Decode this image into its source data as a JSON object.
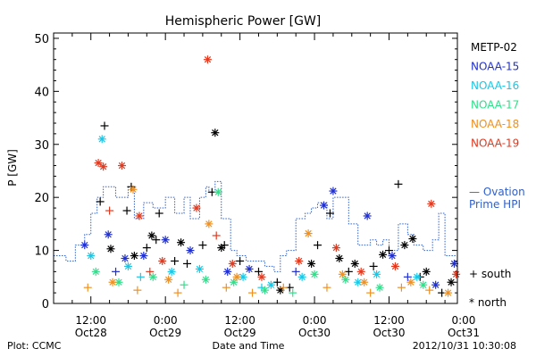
{
  "chart_data": {
    "type": "scatter",
    "title": "Hemispheric Power [GW]",
    "ylabel": "P [GW]",
    "xlabel": "Date and Time",
    "footer_left": "Plot: CCMC",
    "footer_right": "2012/10/31  10:30:08",
    "ylim": [
      0,
      51
    ],
    "xlim_hours_from_oct28_0000": [
      6,
      71
    ],
    "y_ticks": [
      "0",
      "10",
      "20",
      "30",
      "40",
      "50"
    ],
    "x_ticks": [
      {
        "t1": "12:00",
        "t2": "Oct28",
        "h": 12
      },
      {
        "t1": "0:00",
        "t2": "Oct29",
        "h": 24
      },
      {
        "t1": "12:00",
        "t2": "Oct29",
        "h": 36
      },
      {
        "t1": "0:00",
        "t2": "Oct30",
        "h": 48
      },
      {
        "t1": "12:00",
        "t2": "Oct30",
        "h": 60
      },
      {
        "t1": "0:00",
        "t2": "Oct31",
        "h": 72
      }
    ],
    "legend": [
      {
        "name": "METP-02",
        "color": "#000000"
      },
      {
        "name": "NOAA-15",
        "color": "#1f2fd0"
      },
      {
        "name": "NOAA-16",
        "color": "#18c8e8"
      },
      {
        "name": "NOAA-17",
        "color": "#2ee08a"
      },
      {
        "name": "NOAA-18",
        "color": "#f09020"
      },
      {
        "name": "NOAA-19",
        "color": "#e03a20"
      }
    ],
    "ovation_label_1": "— Ovation",
    "ovation_label_2": "Prime HPI",
    "ovation_color": "#3060c8",
    "marker_south": "+ south",
    "marker_north": "* north",
    "ovation_series": [
      [
        6,
        9
      ],
      [
        8,
        8
      ],
      [
        9.5,
        11
      ],
      [
        11,
        13
      ],
      [
        12,
        17
      ],
      [
        13,
        20
      ],
      [
        14,
        22
      ],
      [
        16,
        20
      ],
      [
        18,
        22
      ],
      [
        19,
        16
      ],
      [
        20.5,
        19
      ],
      [
        22,
        18
      ],
      [
        24,
        20
      ],
      [
        25.5,
        17
      ],
      [
        27,
        20
      ],
      [
        28,
        16
      ],
      [
        29.5,
        20
      ],
      [
        30.5,
        22
      ],
      [
        31,
        21
      ],
      [
        32,
        23
      ],
      [
        33,
        16
      ],
      [
        34.5,
        10
      ],
      [
        35.5,
        9
      ],
      [
        37,
        8
      ],
      [
        38,
        8
      ],
      [
        40,
        7
      ],
      [
        41.5,
        6
      ],
      [
        42.5,
        9
      ],
      [
        43.5,
        10
      ],
      [
        45,
        16
      ],
      [
        46.5,
        17
      ],
      [
        47.5,
        18
      ],
      [
        48.5,
        19
      ],
      [
        50,
        16
      ],
      [
        51,
        20
      ],
      [
        52.5,
        20
      ],
      [
        53.5,
        15
      ],
      [
        55,
        11
      ],
      [
        57,
        12
      ],
      [
        58,
        11
      ],
      [
        59,
        12
      ],
      [
        60,
        10
      ],
      [
        61.5,
        15
      ],
      [
        63,
        13
      ],
      [
        64,
        11
      ],
      [
        65.5,
        10
      ],
      [
        67,
        12
      ],
      [
        68,
        17
      ],
      [
        69,
        9
      ],
      [
        71,
        8
      ]
    ],
    "points": [
      {
        "sat": 0,
        "m": "+",
        "x": 14.2,
        "y": 33.5
      },
      {
        "sat": 0,
        "m": "+",
        "x": 13.5,
        "y": 19.2
      },
      {
        "sat": 0,
        "m": "+",
        "x": 18.5,
        "y": 22
      },
      {
        "sat": 0,
        "m": "+",
        "x": 17.8,
        "y": 17.5
      },
      {
        "sat": 0,
        "m": "+",
        "x": 21,
        "y": 10.5
      },
      {
        "sat": 0,
        "m": "+",
        "x": 22.5,
        "y": 12
      },
      {
        "sat": 0,
        "m": "+",
        "x": 23,
        "y": 17
      },
      {
        "sat": 0,
        "m": "+",
        "x": 25.5,
        "y": 8
      },
      {
        "sat": 0,
        "m": "+",
        "x": 27.5,
        "y": 7.5
      },
      {
        "sat": 0,
        "m": "+",
        "x": 30,
        "y": 11
      },
      {
        "sat": 0,
        "m": "+",
        "x": 31.5,
        "y": 21
      },
      {
        "sat": 0,
        "m": "+",
        "x": 33.5,
        "y": 11
      },
      {
        "sat": 0,
        "m": "+",
        "x": 36,
        "y": 8
      },
      {
        "sat": 0,
        "m": "+",
        "x": 39,
        "y": 6
      },
      {
        "sat": 0,
        "m": "+",
        "x": 42,
        "y": 4
      },
      {
        "sat": 0,
        "m": "+",
        "x": 44,
        "y": 3
      },
      {
        "sat": 0,
        "m": "+",
        "x": 48.5,
        "y": 11
      },
      {
        "sat": 0,
        "m": "+",
        "x": 50.5,
        "y": 17
      },
      {
        "sat": 0,
        "m": "+",
        "x": 53.5,
        "y": 6
      },
      {
        "sat": 0,
        "m": "+",
        "x": 57.5,
        "y": 7
      },
      {
        "sat": 0,
        "m": "+",
        "x": 61.5,
        "y": 22.5
      },
      {
        "sat": 0,
        "m": "+",
        "x": 60,
        "y": 10
      },
      {
        "sat": 0,
        "m": "+",
        "x": 65,
        "y": 5
      },
      {
        "sat": 0,
        "m": "+",
        "x": 68.5,
        "y": 2
      },
      {
        "sat": 0,
        "m": "*",
        "x": 15.2,
        "y": 10.3
      },
      {
        "sat": 0,
        "m": "*",
        "x": 19,
        "y": 9
      },
      {
        "sat": 0,
        "m": "*",
        "x": 21.8,
        "y": 12.8
      },
      {
        "sat": 0,
        "m": "*",
        "x": 26.5,
        "y": 11.5
      },
      {
        "sat": 0,
        "m": "*",
        "x": 32,
        "y": 32.2
      },
      {
        "sat": 0,
        "m": "*",
        "x": 33,
        "y": 10.5
      },
      {
        "sat": 0,
        "m": "*",
        "x": 42.5,
        "y": 2.5
      },
      {
        "sat": 0,
        "m": "*",
        "x": 47.5,
        "y": 7.5
      },
      {
        "sat": 0,
        "m": "*",
        "x": 52,
        "y": 8.5
      },
      {
        "sat": 0,
        "m": "*",
        "x": 54.5,
        "y": 7.5
      },
      {
        "sat": 0,
        "m": "*",
        "x": 59,
        "y": 9.2
      },
      {
        "sat": 0,
        "m": "*",
        "x": 62.5,
        "y": 11
      },
      {
        "sat": 0,
        "m": "*",
        "x": 63.8,
        "y": 12.2
      },
      {
        "sat": 0,
        "m": "*",
        "x": 66,
        "y": 6
      },
      {
        "sat": 0,
        "m": "*",
        "x": 70,
        "y": 4
      },
      {
        "sat": 1,
        "m": "*",
        "x": 11,
        "y": 11
      },
      {
        "sat": 1,
        "m": "*",
        "x": 14.8,
        "y": 13
      },
      {
        "sat": 1,
        "m": "*",
        "x": 17.5,
        "y": 8.5
      },
      {
        "sat": 1,
        "m": "*",
        "x": 20.5,
        "y": 9
      },
      {
        "sat": 1,
        "m": "*",
        "x": 24,
        "y": 12
      },
      {
        "sat": 1,
        "m": "*",
        "x": 28,
        "y": 10
      },
      {
        "sat": 1,
        "m": "*",
        "x": 34,
        "y": 6
      },
      {
        "sat": 1,
        "m": "*",
        "x": 37.5,
        "y": 6.5
      },
      {
        "sat": 1,
        "m": "*",
        "x": 49.5,
        "y": 18.5
      },
      {
        "sat": 1,
        "m": "*",
        "x": 51,
        "y": 21.2
      },
      {
        "sat": 1,
        "m": "*",
        "x": 56.5,
        "y": 16.5
      },
      {
        "sat": 1,
        "m": "*",
        "x": 60.5,
        "y": 9
      },
      {
        "sat": 1,
        "m": "*",
        "x": 67.5,
        "y": 3.5
      },
      {
        "sat": 1,
        "m": "*",
        "x": 70.5,
        "y": 7.5
      },
      {
        "sat": 1,
        "m": "+",
        "x": 16,
        "y": 6
      },
      {
        "sat": 1,
        "m": "+",
        "x": 45,
        "y": 6
      },
      {
        "sat": 1,
        "m": "+",
        "x": 63,
        "y": 5
      },
      {
        "sat": 2,
        "m": "*",
        "x": 13.8,
        "y": 31
      },
      {
        "sat": 2,
        "m": "*",
        "x": 12,
        "y": 9
      },
      {
        "sat": 2,
        "m": "*",
        "x": 18,
        "y": 7
      },
      {
        "sat": 2,
        "m": "*",
        "x": 25,
        "y": 6
      },
      {
        "sat": 2,
        "m": "*",
        "x": 29.5,
        "y": 6.5
      },
      {
        "sat": 2,
        "m": "*",
        "x": 36.5,
        "y": 5
      },
      {
        "sat": 2,
        "m": "*",
        "x": 41,
        "y": 3.5
      },
      {
        "sat": 2,
        "m": "*",
        "x": 46,
        "y": 5
      },
      {
        "sat": 2,
        "m": "*",
        "x": 55,
        "y": 4
      },
      {
        "sat": 2,
        "m": "*",
        "x": 58,
        "y": 5.5
      },
      {
        "sat": 2,
        "m": "*",
        "x": 64.5,
        "y": 5
      },
      {
        "sat": 2,
        "m": "+",
        "x": 20,
        "y": 5
      },
      {
        "sat": 2,
        "m": "+",
        "x": 39.5,
        "y": 3
      },
      {
        "sat": 3,
        "m": "*",
        "x": 12.8,
        "y": 6
      },
      {
        "sat": 3,
        "m": "*",
        "x": 16.5,
        "y": 4
      },
      {
        "sat": 3,
        "m": "*",
        "x": 22,
        "y": 5
      },
      {
        "sat": 3,
        "m": "*",
        "x": 30.5,
        "y": 4.5
      },
      {
        "sat": 3,
        "m": "*",
        "x": 32.5,
        "y": 21
      },
      {
        "sat": 3,
        "m": "*",
        "x": 35,
        "y": 4
      },
      {
        "sat": 3,
        "m": "*",
        "x": 40,
        "y": 2.5
      },
      {
        "sat": 3,
        "m": "*",
        "x": 48,
        "y": 5.5
      },
      {
        "sat": 3,
        "m": "*",
        "x": 53,
        "y": 4.5
      },
      {
        "sat": 3,
        "m": "*",
        "x": 58.5,
        "y": 3
      },
      {
        "sat": 3,
        "m": "*",
        "x": 65.5,
        "y": 3.5
      },
      {
        "sat": 3,
        "m": "+",
        "x": 27,
        "y": 3.5
      },
      {
        "sat": 3,
        "m": "+",
        "x": 44.5,
        "y": 2
      },
      {
        "sat": 4,
        "m": "*",
        "x": 15.5,
        "y": 4
      },
      {
        "sat": 4,
        "m": "*",
        "x": 18.8,
        "y": 21.5
      },
      {
        "sat": 4,
        "m": "*",
        "x": 24.5,
        "y": 4.5
      },
      {
        "sat": 4,
        "m": "*",
        "x": 31,
        "y": 15
      },
      {
        "sat": 4,
        "m": "*",
        "x": 35.5,
        "y": 5
      },
      {
        "sat": 4,
        "m": "*",
        "x": 47,
        "y": 13.2
      },
      {
        "sat": 4,
        "m": "*",
        "x": 52.5,
        "y": 5.5
      },
      {
        "sat": 4,
        "m": "*",
        "x": 56,
        "y": 4
      },
      {
        "sat": 4,
        "m": "*",
        "x": 63.5,
        "y": 4
      },
      {
        "sat": 4,
        "m": "*",
        "x": 69.5,
        "y": 2
      },
      {
        "sat": 4,
        "m": "+",
        "x": 11.5,
        "y": 3
      },
      {
        "sat": 4,
        "m": "+",
        "x": 19.5,
        "y": 2.5
      },
      {
        "sat": 4,
        "m": "+",
        "x": 26,
        "y": 2
      },
      {
        "sat": 4,
        "m": "+",
        "x": 33.8,
        "y": 3
      },
      {
        "sat": 4,
        "m": "+",
        "x": 38,
        "y": 2
      },
      {
        "sat": 4,
        "m": "+",
        "x": 43,
        "y": 3
      },
      {
        "sat": 4,
        "m": "+",
        "x": 50,
        "y": 3
      },
      {
        "sat": 4,
        "m": "+",
        "x": 57,
        "y": 2
      },
      {
        "sat": 4,
        "m": "+",
        "x": 62,
        "y": 3
      },
      {
        "sat": 4,
        "m": "+",
        "x": 66.5,
        "y": 2.5
      },
      {
        "sat": 5,
        "m": "*",
        "x": 13.2,
        "y": 26.5
      },
      {
        "sat": 5,
        "m": "*",
        "x": 14,
        "y": 25.8
      },
      {
        "sat": 5,
        "m": "*",
        "x": 17,
        "y": 26
      },
      {
        "sat": 5,
        "m": "*",
        "x": 19.8,
        "y": 16.5
      },
      {
        "sat": 5,
        "m": "*",
        "x": 23.5,
        "y": 8
      },
      {
        "sat": 5,
        "m": "*",
        "x": 29,
        "y": 18
      },
      {
        "sat": 5,
        "m": "*",
        "x": 30.8,
        "y": 46
      },
      {
        "sat": 5,
        "m": "*",
        "x": 34.8,
        "y": 7.5
      },
      {
        "sat": 5,
        "m": "*",
        "x": 39.5,
        "y": 5
      },
      {
        "sat": 5,
        "m": "*",
        "x": 45.5,
        "y": 8
      },
      {
        "sat": 5,
        "m": "*",
        "x": 51.5,
        "y": 10.5
      },
      {
        "sat": 5,
        "m": "*",
        "x": 55.5,
        "y": 6
      },
      {
        "sat": 5,
        "m": "*",
        "x": 61,
        "y": 7
      },
      {
        "sat": 5,
        "m": "*",
        "x": 66.8,
        "y": 18.8
      },
      {
        "sat": 5,
        "m": "*",
        "x": 70.8,
        "y": 5.5
      },
      {
        "sat": 5,
        "m": "+",
        "x": 15,
        "y": 17.5
      },
      {
        "sat": 5,
        "m": "+",
        "x": 32.2,
        "y": 12.8
      },
      {
        "sat": 5,
        "m": "+",
        "x": 21.5,
        "y": 6
      }
    ]
  }
}
